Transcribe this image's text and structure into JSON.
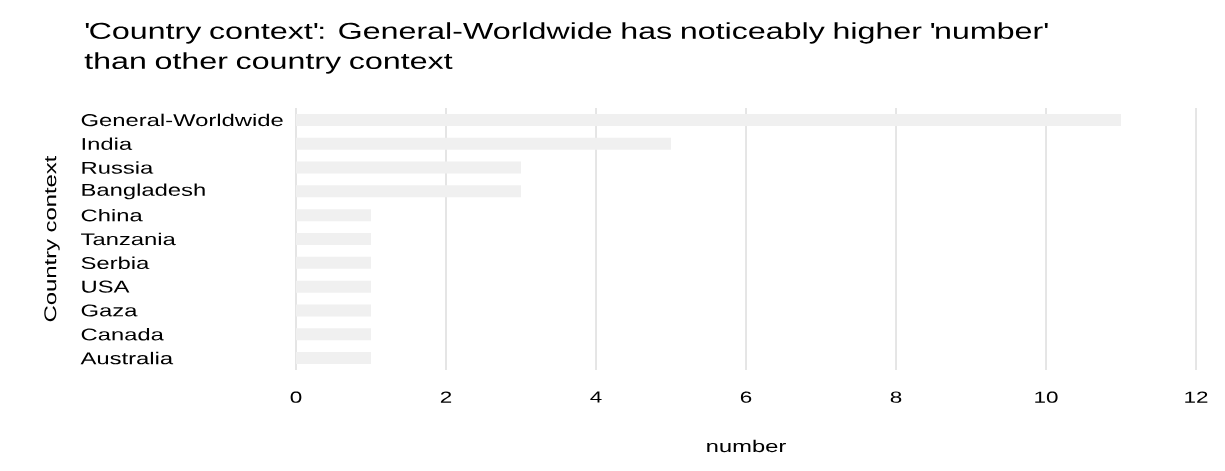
{
  "chart_data": {
    "type": "bar",
    "orientation": "horizontal",
    "title": "'Country context': General-Worldwide has noticeably higher 'number' than other country context",
    "xlabel": "number",
    "ylabel": "Country context",
    "categories": [
      "General-Worldwide",
      "India",
      "Russia",
      "Bangladesh",
      "China",
      "Tanzania",
      "Serbia",
      "USA",
      "Gaza",
      "Canada",
      "Australia"
    ],
    "values": [
      11,
      5,
      3,
      3,
      1,
      1,
      1,
      1,
      1,
      1,
      1
    ],
    "color": "#f0f0f0",
    "xlim": [
      0,
      12
    ],
    "xticks": [
      0,
      2,
      4,
      6,
      8,
      10,
      12
    ],
    "grid": "x"
  }
}
